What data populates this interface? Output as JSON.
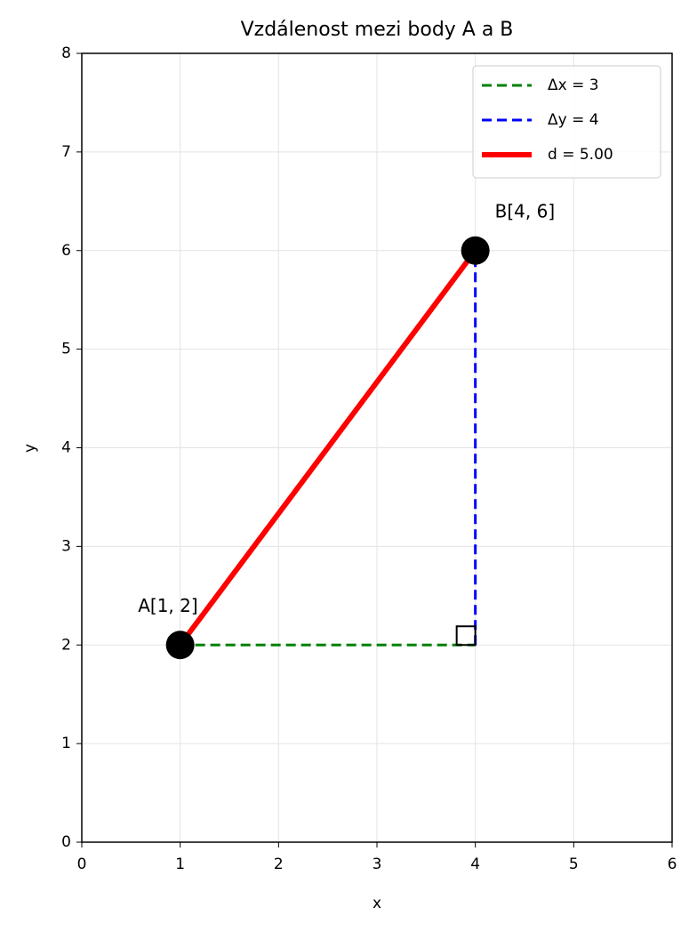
{
  "chart_data": {
    "type": "line",
    "title": "Vzdálenost mezi body A a B",
    "xlabel": "x",
    "ylabel": "y",
    "xlim": [
      0,
      6
    ],
    "ylim": [
      0,
      8
    ],
    "xticks": [
      0,
      1,
      2,
      3,
      4,
      5,
      6
    ],
    "yticks": [
      0,
      1,
      2,
      3,
      4,
      5,
      6,
      7,
      8
    ],
    "grid": true,
    "legend": "upper right",
    "series": [
      {
        "name": "Δx = 3",
        "color": "green",
        "linestyle": "dashed",
        "linewidth": 3,
        "x": [
          1,
          4
        ],
        "values": [
          2,
          2
        ]
      },
      {
        "name": "Δy = 4",
        "color": "blue",
        "linestyle": "dashed",
        "linewidth": 3,
        "x": [
          4,
          4
        ],
        "values": [
          2,
          6
        ]
      },
      {
        "name": "d = 5.00",
        "color": "red",
        "linestyle": "solid",
        "linewidth": 6,
        "x": [
          1,
          4
        ],
        "values": [
          2,
          6
        ]
      }
    ],
    "points": {
      "color": "black",
      "x": [
        1,
        4
      ],
      "values": [
        2,
        6
      ],
      "labels": [
        "A[1, 2]",
        "B[4, 6]"
      ]
    }
  }
}
